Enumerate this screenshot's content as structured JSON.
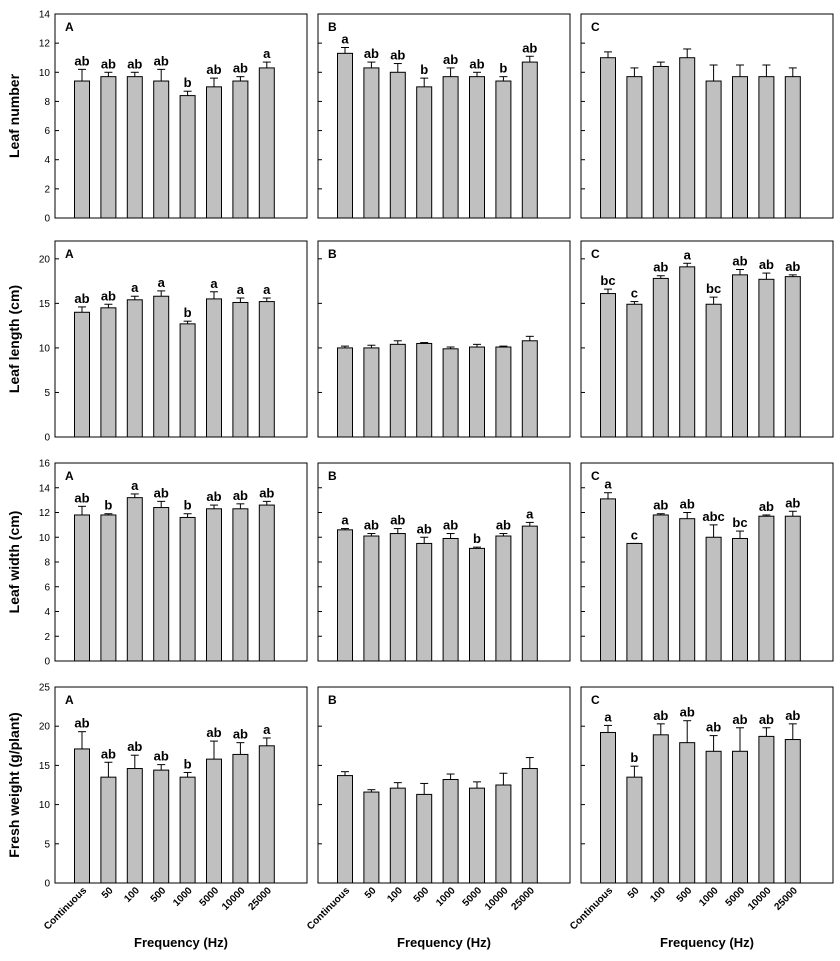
{
  "chart_data": {
    "type": "bar",
    "categories": [
      "Continuous",
      "50",
      "100",
      "500",
      "1000",
      "5000",
      "10000",
      "25000"
    ],
    "xlabel": "Frequency (Hz)",
    "rows": [
      {
        "ylabel": "Leaf number",
        "ylim": [
          0,
          14
        ],
        "yticks": [
          0,
          2,
          4,
          6,
          8,
          10,
          12,
          14
        ],
        "panels": [
          {
            "letter": "A",
            "values": [
              9.4,
              9.7,
              9.7,
              9.4,
              8.4,
              9.0,
              9.4,
              10.3
            ],
            "errors": [
              0.8,
              0.3,
              0.3,
              0.8,
              0.3,
              0.6,
              0.3,
              0.4
            ],
            "letters": [
              "ab",
              "ab",
              "ab",
              "ab",
              "b",
              "ab",
              "ab",
              "a"
            ]
          },
          {
            "letter": "B",
            "values": [
              11.3,
              10.3,
              10.0,
              9.0,
              9.7,
              9.7,
              9.4,
              10.7
            ],
            "errors": [
              0.4,
              0.4,
              0.6,
              0.6,
              0.6,
              0.3,
              0.3,
              0.4
            ],
            "letters": [
              "a",
              "ab",
              "ab",
              "b",
              "ab",
              "ab",
              "b",
              "ab"
            ]
          },
          {
            "letter": "C",
            "values": [
              11.0,
              9.7,
              10.4,
              11.0,
              9.4,
              9.7,
              9.7,
              9.7
            ],
            "errors": [
              0.4,
              0.6,
              0.3,
              0.6,
              1.1,
              0.8,
              0.8,
              0.6
            ],
            "letters": [
              "",
              "",
              "",
              "",
              "",
              "",
              "",
              ""
            ]
          }
        ]
      },
      {
        "ylabel": "Leaf length (cm)",
        "ylim": [
          0,
          22
        ],
        "yticks": [
          0,
          5,
          10,
          15,
          20
        ],
        "panels": [
          {
            "letter": "A",
            "values": [
              14.0,
              14.5,
              15.4,
              15.8,
              12.7,
              15.5,
              15.1,
              15.2
            ],
            "errors": [
              0.6,
              0.4,
              0.4,
              0.6,
              0.3,
              0.8,
              0.5,
              0.4
            ],
            "letters": [
              "ab",
              "ab",
              "a",
              "a",
              "b",
              "a",
              "a",
              "a"
            ]
          },
          {
            "letter": "B",
            "values": [
              10.0,
              10.0,
              10.4,
              10.5,
              9.9,
              10.1,
              10.1,
              10.8
            ],
            "errors": [
              0.2,
              0.3,
              0.4,
              0.1,
              0.2,
              0.3,
              0.1,
              0.5
            ],
            "letters": [
              "",
              "",
              "",
              "",
              "",
              "",
              "",
              ""
            ]
          },
          {
            "letter": "C",
            "values": [
              16.1,
              14.9,
              17.8,
              19.1,
              14.9,
              18.2,
              17.7,
              18.0
            ],
            "errors": [
              0.5,
              0.3,
              0.3,
              0.4,
              0.8,
              0.6,
              0.7,
              0.2
            ],
            "letters": [
              "bc",
              "c",
              "ab",
              "a",
              "bc",
              "ab",
              "ab",
              "ab"
            ]
          }
        ]
      },
      {
        "ylabel": "Leaf width (cm)",
        "ylim": [
          0,
          16
        ],
        "yticks": [
          0,
          2,
          4,
          6,
          8,
          10,
          12,
          14,
          16
        ],
        "panels": [
          {
            "letter": "A",
            "values": [
              11.8,
              11.8,
              13.2,
              12.4,
              11.6,
              12.3,
              12.3,
              12.6
            ],
            "errors": [
              0.7,
              0.1,
              0.3,
              0.5,
              0.3,
              0.3,
              0.4,
              0.3
            ],
            "letters": [
              "ab",
              "b",
              "a",
              "ab",
              "b",
              "ab",
              "ab",
              "ab"
            ]
          },
          {
            "letter": "B",
            "values": [
              10.6,
              10.1,
              10.3,
              9.5,
              9.9,
              9.1,
              10.1,
              10.9
            ],
            "errors": [
              0.1,
              0.2,
              0.4,
              0.5,
              0.4,
              0.1,
              0.2,
              0.3
            ],
            "letters": [
              "a",
              "ab",
              "ab",
              "ab",
              "ab",
              "b",
              "ab",
              "a"
            ]
          },
          {
            "letter": "C",
            "values": [
              13.1,
              9.5,
              11.8,
              11.5,
              10.0,
              9.9,
              11.7,
              11.7
            ],
            "errors": [
              0.5,
              0.0,
              0.1,
              0.5,
              1.0,
              0.6,
              0.1,
              0.4
            ],
            "letters": [
              "a",
              "c",
              "ab",
              "ab",
              "abc",
              "bc",
              "ab",
              "ab"
            ]
          }
        ]
      },
      {
        "ylabel": "Fresh weight (g/plant)",
        "ylim": [
          0,
          25
        ],
        "yticks": [
          0,
          5,
          10,
          15,
          20,
          25
        ],
        "panels": [
          {
            "letter": "A",
            "values": [
              17.1,
              13.5,
              14.6,
              14.4,
              13.5,
              15.8,
              16.4,
              17.5
            ],
            "errors": [
              2.2,
              1.9,
              1.7,
              0.7,
              0.6,
              2.3,
              1.5,
              1.0
            ],
            "letters": [
              "ab",
              "ab",
              "ab",
              "ab",
              "b",
              "ab",
              "ab",
              "a"
            ]
          },
          {
            "letter": "B",
            "values": [
              13.7,
              11.6,
              12.1,
              11.3,
              13.2,
              12.1,
              12.5,
              14.6
            ],
            "errors": [
              0.5,
              0.3,
              0.7,
              1.4,
              0.7,
              0.8,
              1.5,
              1.4
            ],
            "letters": [
              "",
              "",
              "",
              "",
              "",
              "",
              "",
              ""
            ]
          },
          {
            "letter": "C",
            "values": [
              19.2,
              13.5,
              18.9,
              17.9,
              16.8,
              16.8,
              18.7,
              18.3
            ],
            "errors": [
              0.9,
              1.4,
              1.4,
              2.8,
              2.0,
              3.0,
              1.1,
              2.0
            ],
            "letters": [
              "a",
              "b",
              "ab",
              "ab",
              "ab",
              "ab",
              "ab",
              "ab"
            ]
          }
        ]
      }
    ]
  }
}
